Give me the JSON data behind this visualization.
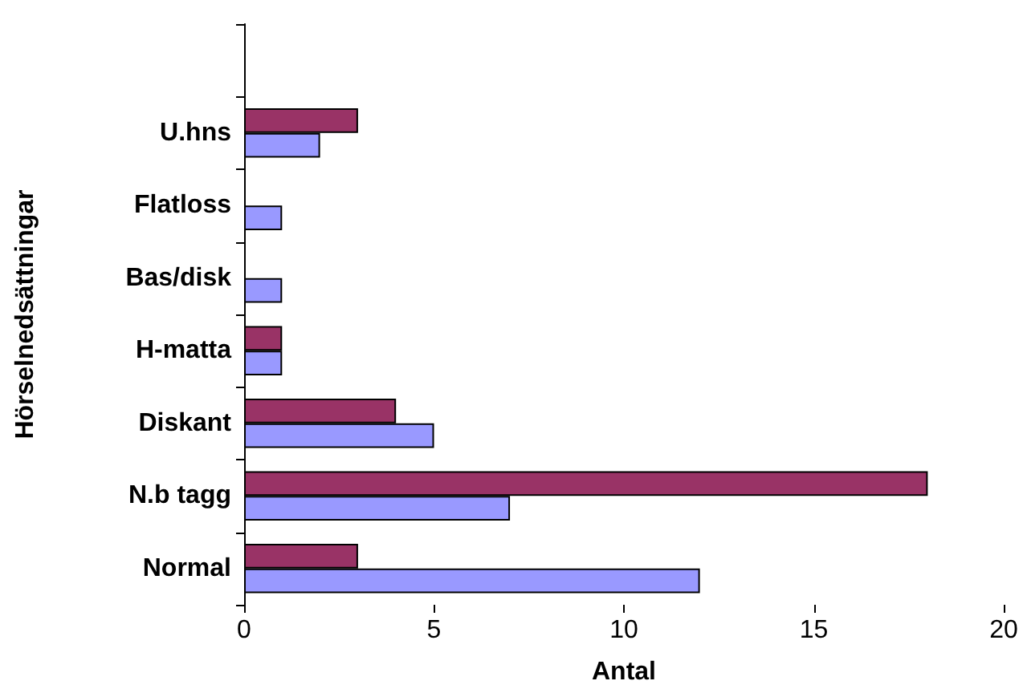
{
  "chart_data": {
    "type": "bar",
    "orientation": "horizontal",
    "xlabel": "Antal",
    "ylabel": "Hörselnedsättningar",
    "categories": [
      null,
      "U.hns",
      "Flatloss",
      "Bas/disk",
      "H-matta",
      "Diskant",
      "N.b tagg",
      "Normal"
    ],
    "series": [
      {
        "color": "#993366",
        "values": [
          null,
          3,
          null,
          null,
          1,
          4,
          18,
          3
        ]
      },
      {
        "color": "#9999ff",
        "values": [
          null,
          2,
          1,
          1,
          1,
          5,
          7,
          12
        ]
      }
    ],
    "xlim": [
      0,
      20
    ],
    "xticks": [
      0,
      5,
      10,
      15,
      20
    ],
    "grid": false
  }
}
